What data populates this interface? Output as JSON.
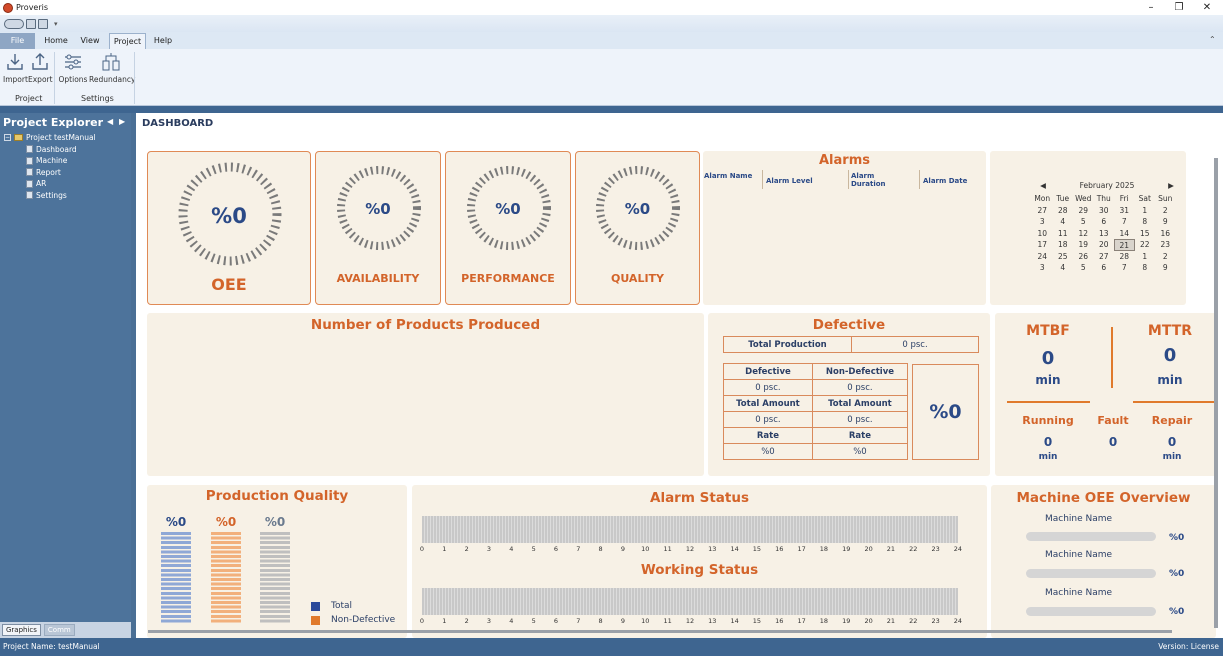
{
  "app": {
    "title": "Proveris"
  },
  "ribbon": {
    "tabs": [
      {
        "label": "File"
      },
      {
        "label": "Home"
      },
      {
        "label": "View"
      },
      {
        "label": "Project"
      },
      {
        "label": "Help"
      }
    ],
    "buttons": {
      "import": "Import",
      "export": "Export",
      "options": "Options",
      "redundancy": "Redundancy"
    },
    "groups": {
      "project": "Project",
      "settings": "Settings"
    }
  },
  "explorer": {
    "title": "Project Explorer",
    "root": "Project testManual",
    "items": [
      "Dashboard",
      "Machine",
      "Report",
      "AR",
      "Settings"
    ],
    "tabs": [
      "Graphics",
      "Comm"
    ]
  },
  "dashboard": {
    "title": "DASHBOARD",
    "gauges": [
      {
        "label": "OEE",
        "value": "%0"
      },
      {
        "label": "AVAILABILITY",
        "value": "%0"
      },
      {
        "label": "PERFORMANCE",
        "value": "%0"
      },
      {
        "label": "QUALITY",
        "value": "%0"
      }
    ],
    "alarms": {
      "title": "Alarms",
      "columns": [
        "Alarm Name",
        "Alarm Level",
        "Alarm Duration",
        "Alarm Date"
      ]
    },
    "calendar": {
      "month": "February 2025",
      "weekdays": [
        "Mon",
        "Tue",
        "Wed",
        "Thu",
        "Fri",
        "Sat",
        "Sun"
      ],
      "days": [
        "27",
        "28",
        "29",
        "30",
        "31",
        "1",
        "2",
        "3",
        "4",
        "5",
        "6",
        "7",
        "8",
        "9",
        "10",
        "11",
        "12",
        "13",
        "14",
        "15",
        "16",
        "17",
        "18",
        "19",
        "20",
        "21",
        "22",
        "23",
        "24",
        "25",
        "26",
        "27",
        "28",
        "1",
        "2",
        "3",
        "4",
        "5",
        "6",
        "7",
        "8",
        "9"
      ],
      "today": "21"
    },
    "products": {
      "title": "Number of Products Produced"
    },
    "defective": {
      "title": "Defective",
      "total_production_label": "Total Production",
      "total_production_value": "0 psc.",
      "defective_label": "Defective",
      "non_defective_label": "Non-Defective",
      "defective_value": "0 psc.",
      "non_defective_value": "0 psc.",
      "total_amount_label": "Total Amount",
      "total_amount_value_1": "0 psc.",
      "total_amount_value_2": "0 psc.",
      "rate_label": "Rate",
      "rate_value_1": "%0",
      "rate_value_2": "%0",
      "rate_big": "%0"
    },
    "mtbf": {
      "mtbf_label": "MTBF",
      "mtbf_value": "0",
      "mtbf_unit": "min",
      "mttr_label": "MTTR",
      "mttr_value": "0",
      "mttr_unit": "min",
      "running_label": "Running",
      "running_value": "0",
      "running_unit": "min",
      "fault_label": "Fault",
      "fault_value": "0",
      "repair_label": "Repair",
      "repair_value": "0",
      "repair_unit": "min"
    },
    "production_quality": {
      "title": "Production Quality",
      "values": [
        "%0",
        "%0",
        "%0"
      ],
      "legend": [
        "Total",
        "Non-Defective"
      ],
      "colors": {
        "total": "#2b4a9a",
        "non_defective": "#e07a2c"
      }
    },
    "alarm_status": {
      "title": "Alarm Status"
    },
    "working_status": {
      "title": "Working Status"
    },
    "hours": [
      "0",
      "1",
      "2",
      "3",
      "4",
      "5",
      "6",
      "7",
      "8",
      "9",
      "10",
      "11",
      "12",
      "13",
      "14",
      "15",
      "16",
      "17",
      "18",
      "19",
      "20",
      "21",
      "22",
      "23",
      "24"
    ],
    "machine_oee": {
      "title": "Machine OEE Overview",
      "machines": [
        {
          "name": "Machine Name",
          "value": "%0"
        },
        {
          "name": "Machine Name",
          "value": "%0"
        },
        {
          "name": "Machine Name",
          "value": "%0"
        }
      ]
    }
  },
  "status": {
    "project": "Project Name: testManual",
    "version": "Version: License"
  }
}
